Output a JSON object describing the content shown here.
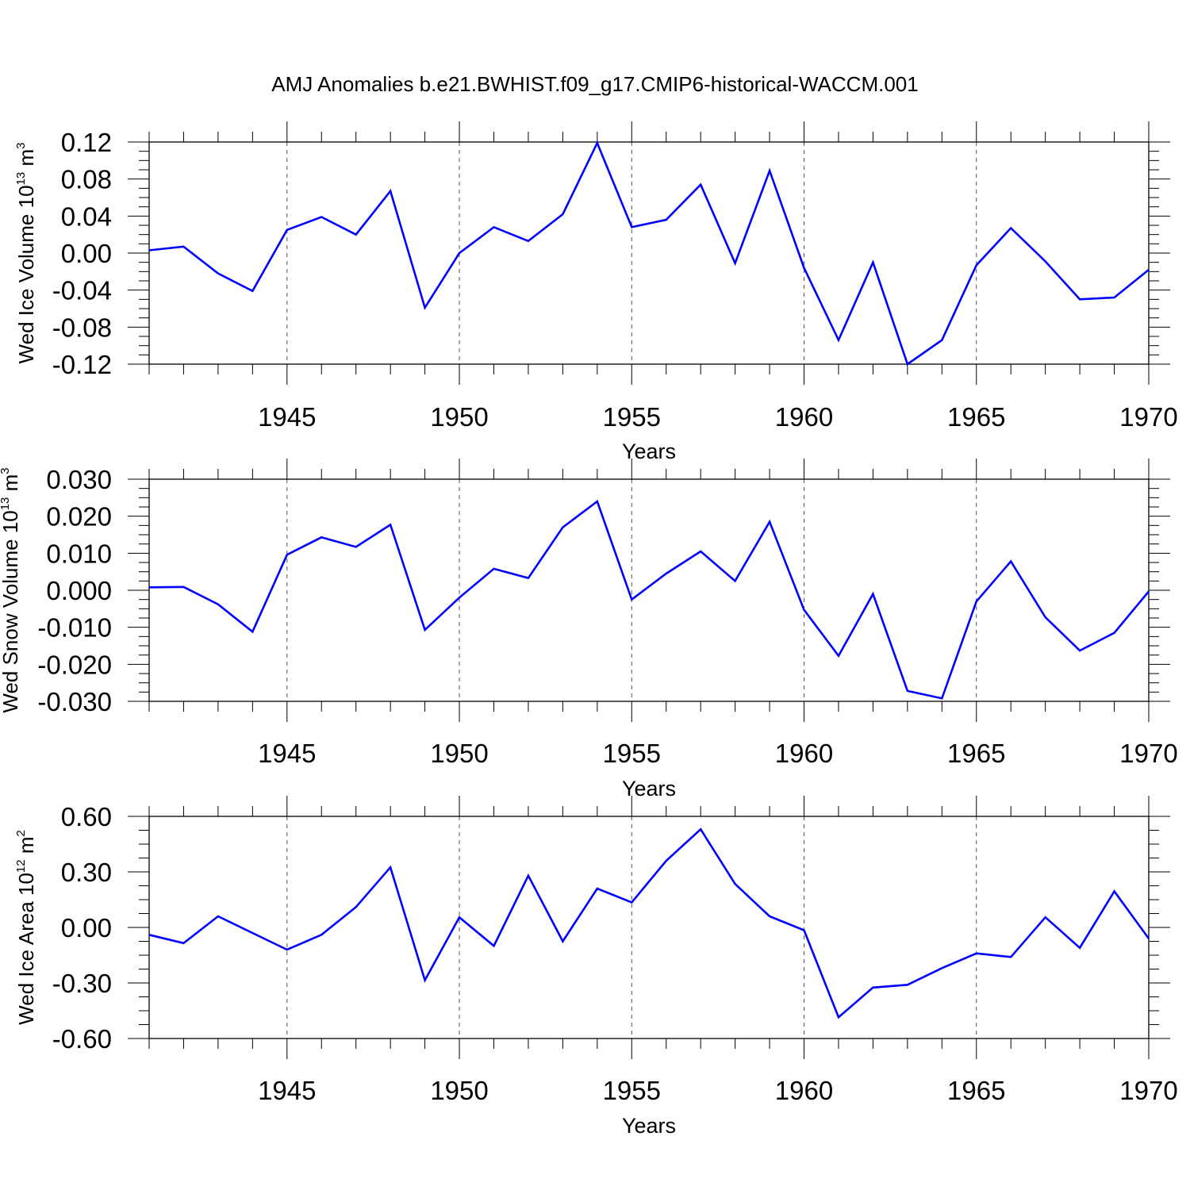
{
  "title": "AMJ Anomalies b.e21.BWHIST.f09_g17.CMIP6-historical-WACCM.001",
  "line_color": "#0000ff",
  "chart_data": [
    {
      "type": "line",
      "ylabel": "Wed Ice Volume",
      "yunit": {
        "base": "10",
        "exp": "13",
        "unit": "m",
        "unit_exp": "3"
      },
      "xlabel": "Years",
      "xlim": [
        1941,
        1970
      ],
      "ylim": [
        -0.12,
        0.12
      ],
      "xticks": [
        1945,
        1950,
        1955,
        1960,
        1965,
        1970
      ],
      "yticks": [
        -0.12,
        -0.08,
        -0.04,
        0.0,
        0.04,
        0.08,
        0.12
      ],
      "ytick_labels": [
        "-0.12",
        "-0.08",
        "-0.04",
        "0.00",
        "0.04",
        "0.08",
        "0.12"
      ],
      "grid": "vertical dashed at major x ticks",
      "x": [
        1941,
        1942,
        1943,
        1944,
        1945,
        1946,
        1947,
        1948,
        1949,
        1950,
        1951,
        1952,
        1953,
        1954,
        1955,
        1956,
        1957,
        1958,
        1959,
        1960,
        1961,
        1962,
        1963,
        1964,
        1965,
        1966,
        1967,
        1968,
        1969,
        1970
      ],
      "values": [
        0.003,
        0.007,
        -0.022,
        -0.041,
        0.025,
        0.039,
        0.02,
        0.067,
        -0.059,
        0.0,
        0.028,
        0.013,
        0.042,
        0.119,
        0.028,
        0.036,
        0.074,
        -0.011,
        0.089,
        -0.016,
        -0.094,
        -0.01,
        -0.12,
        -0.094,
        -0.013,
        0.027,
        -0.009,
        -0.05,
        -0.048,
        -0.018
      ]
    },
    {
      "type": "line",
      "ylabel": "Wed Snow Volume",
      "yunit": {
        "base": "10",
        "exp": "13",
        "unit": "m",
        "unit_exp": "3"
      },
      "xlabel": "Years",
      "xlim": [
        1941,
        1970
      ],
      "ylim": [
        -0.03,
        0.03
      ],
      "xticks": [
        1945,
        1950,
        1955,
        1960,
        1965,
        1970
      ],
      "yticks": [
        -0.03,
        -0.02,
        -0.01,
        0.0,
        0.01,
        0.02,
        0.03
      ],
      "ytick_labels": [
        "-0.030",
        "-0.020",
        "-0.010",
        "0.000",
        "0.010",
        "0.020",
        "0.030"
      ],
      "grid": "vertical dashed at major x ticks",
      "x": [
        1941,
        1942,
        1943,
        1944,
        1945,
        1946,
        1947,
        1948,
        1949,
        1950,
        1951,
        1952,
        1953,
        1954,
        1955,
        1956,
        1957,
        1958,
        1959,
        1960,
        1961,
        1962,
        1963,
        1964,
        1965,
        1966,
        1967,
        1968,
        1969,
        1970
      ],
      "values": [
        0.0008,
        0.0009,
        -0.0038,
        -0.0112,
        0.0096,
        0.0143,
        0.0117,
        0.0177,
        -0.0107,
        -0.002,
        0.0058,
        0.0033,
        0.017,
        0.024,
        -0.0025,
        0.0045,
        0.0105,
        0.0025,
        0.0185,
        -0.0053,
        -0.0177,
        -0.001,
        -0.0272,
        -0.0292,
        -0.003,
        0.0078,
        -0.0073,
        -0.0163,
        -0.0115,
        -0.0003
      ]
    },
    {
      "type": "line",
      "ylabel": "Wed Ice Area",
      "yunit": {
        "base": "10",
        "exp": "12",
        "unit": "m",
        "unit_exp": "2"
      },
      "xlabel": "Years",
      "xlim": [
        1941,
        1970
      ],
      "ylim": [
        -0.6,
        0.6
      ],
      "xticks": [
        1945,
        1950,
        1955,
        1960,
        1965,
        1970
      ],
      "yticks": [
        -0.6,
        -0.3,
        0.0,
        0.3,
        0.6
      ],
      "ytick_labels": [
        "-0.60",
        "-0.30",
        "0.00",
        "0.30",
        "0.60"
      ],
      "grid": "vertical dashed at major x ticks",
      "x": [
        1941,
        1942,
        1943,
        1944,
        1945,
        1946,
        1947,
        1948,
        1949,
        1950,
        1951,
        1952,
        1953,
        1954,
        1955,
        1956,
        1957,
        1958,
        1959,
        1960,
        1961,
        1962,
        1963,
        1964,
        1965,
        1966,
        1967,
        1968,
        1969,
        1970
      ],
      "values": [
        -0.04,
        -0.085,
        0.06,
        -0.03,
        -0.12,
        -0.04,
        0.11,
        0.325,
        -0.285,
        0.055,
        -0.1,
        0.28,
        -0.075,
        0.21,
        0.135,
        0.36,
        0.53,
        0.235,
        0.06,
        -0.015,
        -0.485,
        -0.325,
        -0.31,
        -0.22,
        -0.14,
        -0.16,
        0.055,
        -0.11,
        0.195,
        -0.06
      ]
    }
  ]
}
